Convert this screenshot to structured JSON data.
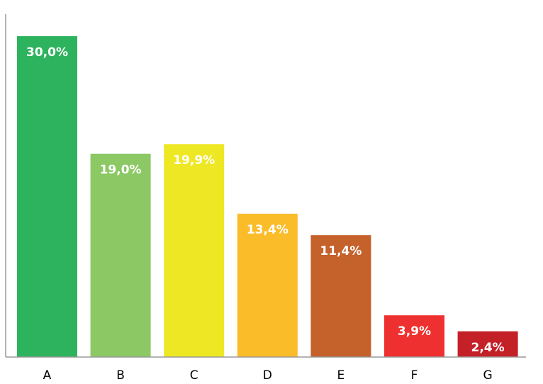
{
  "chart_data": {
    "type": "bar",
    "categories": [
      "A",
      "B",
      "C",
      "D",
      "E",
      "F",
      "G"
    ],
    "values": [
      30.0,
      19.0,
      19.9,
      13.4,
      11.4,
      3.9,
      2.4
    ],
    "data_labels": [
      "30,0%",
      "19,0%",
      "19,9%",
      "13,4%",
      "11,4%",
      "3,9%",
      "2,4%"
    ],
    "colors": [
      "#2db35d",
      "#8cc864",
      "#eee723",
      "#fbbc2a",
      "#c5612b",
      "#ee3130",
      "#c42028"
    ],
    "title": "",
    "xlabel": "",
    "ylabel": "",
    "ylim": [
      0,
      30
    ],
    "grid": false,
    "legend": "none"
  }
}
